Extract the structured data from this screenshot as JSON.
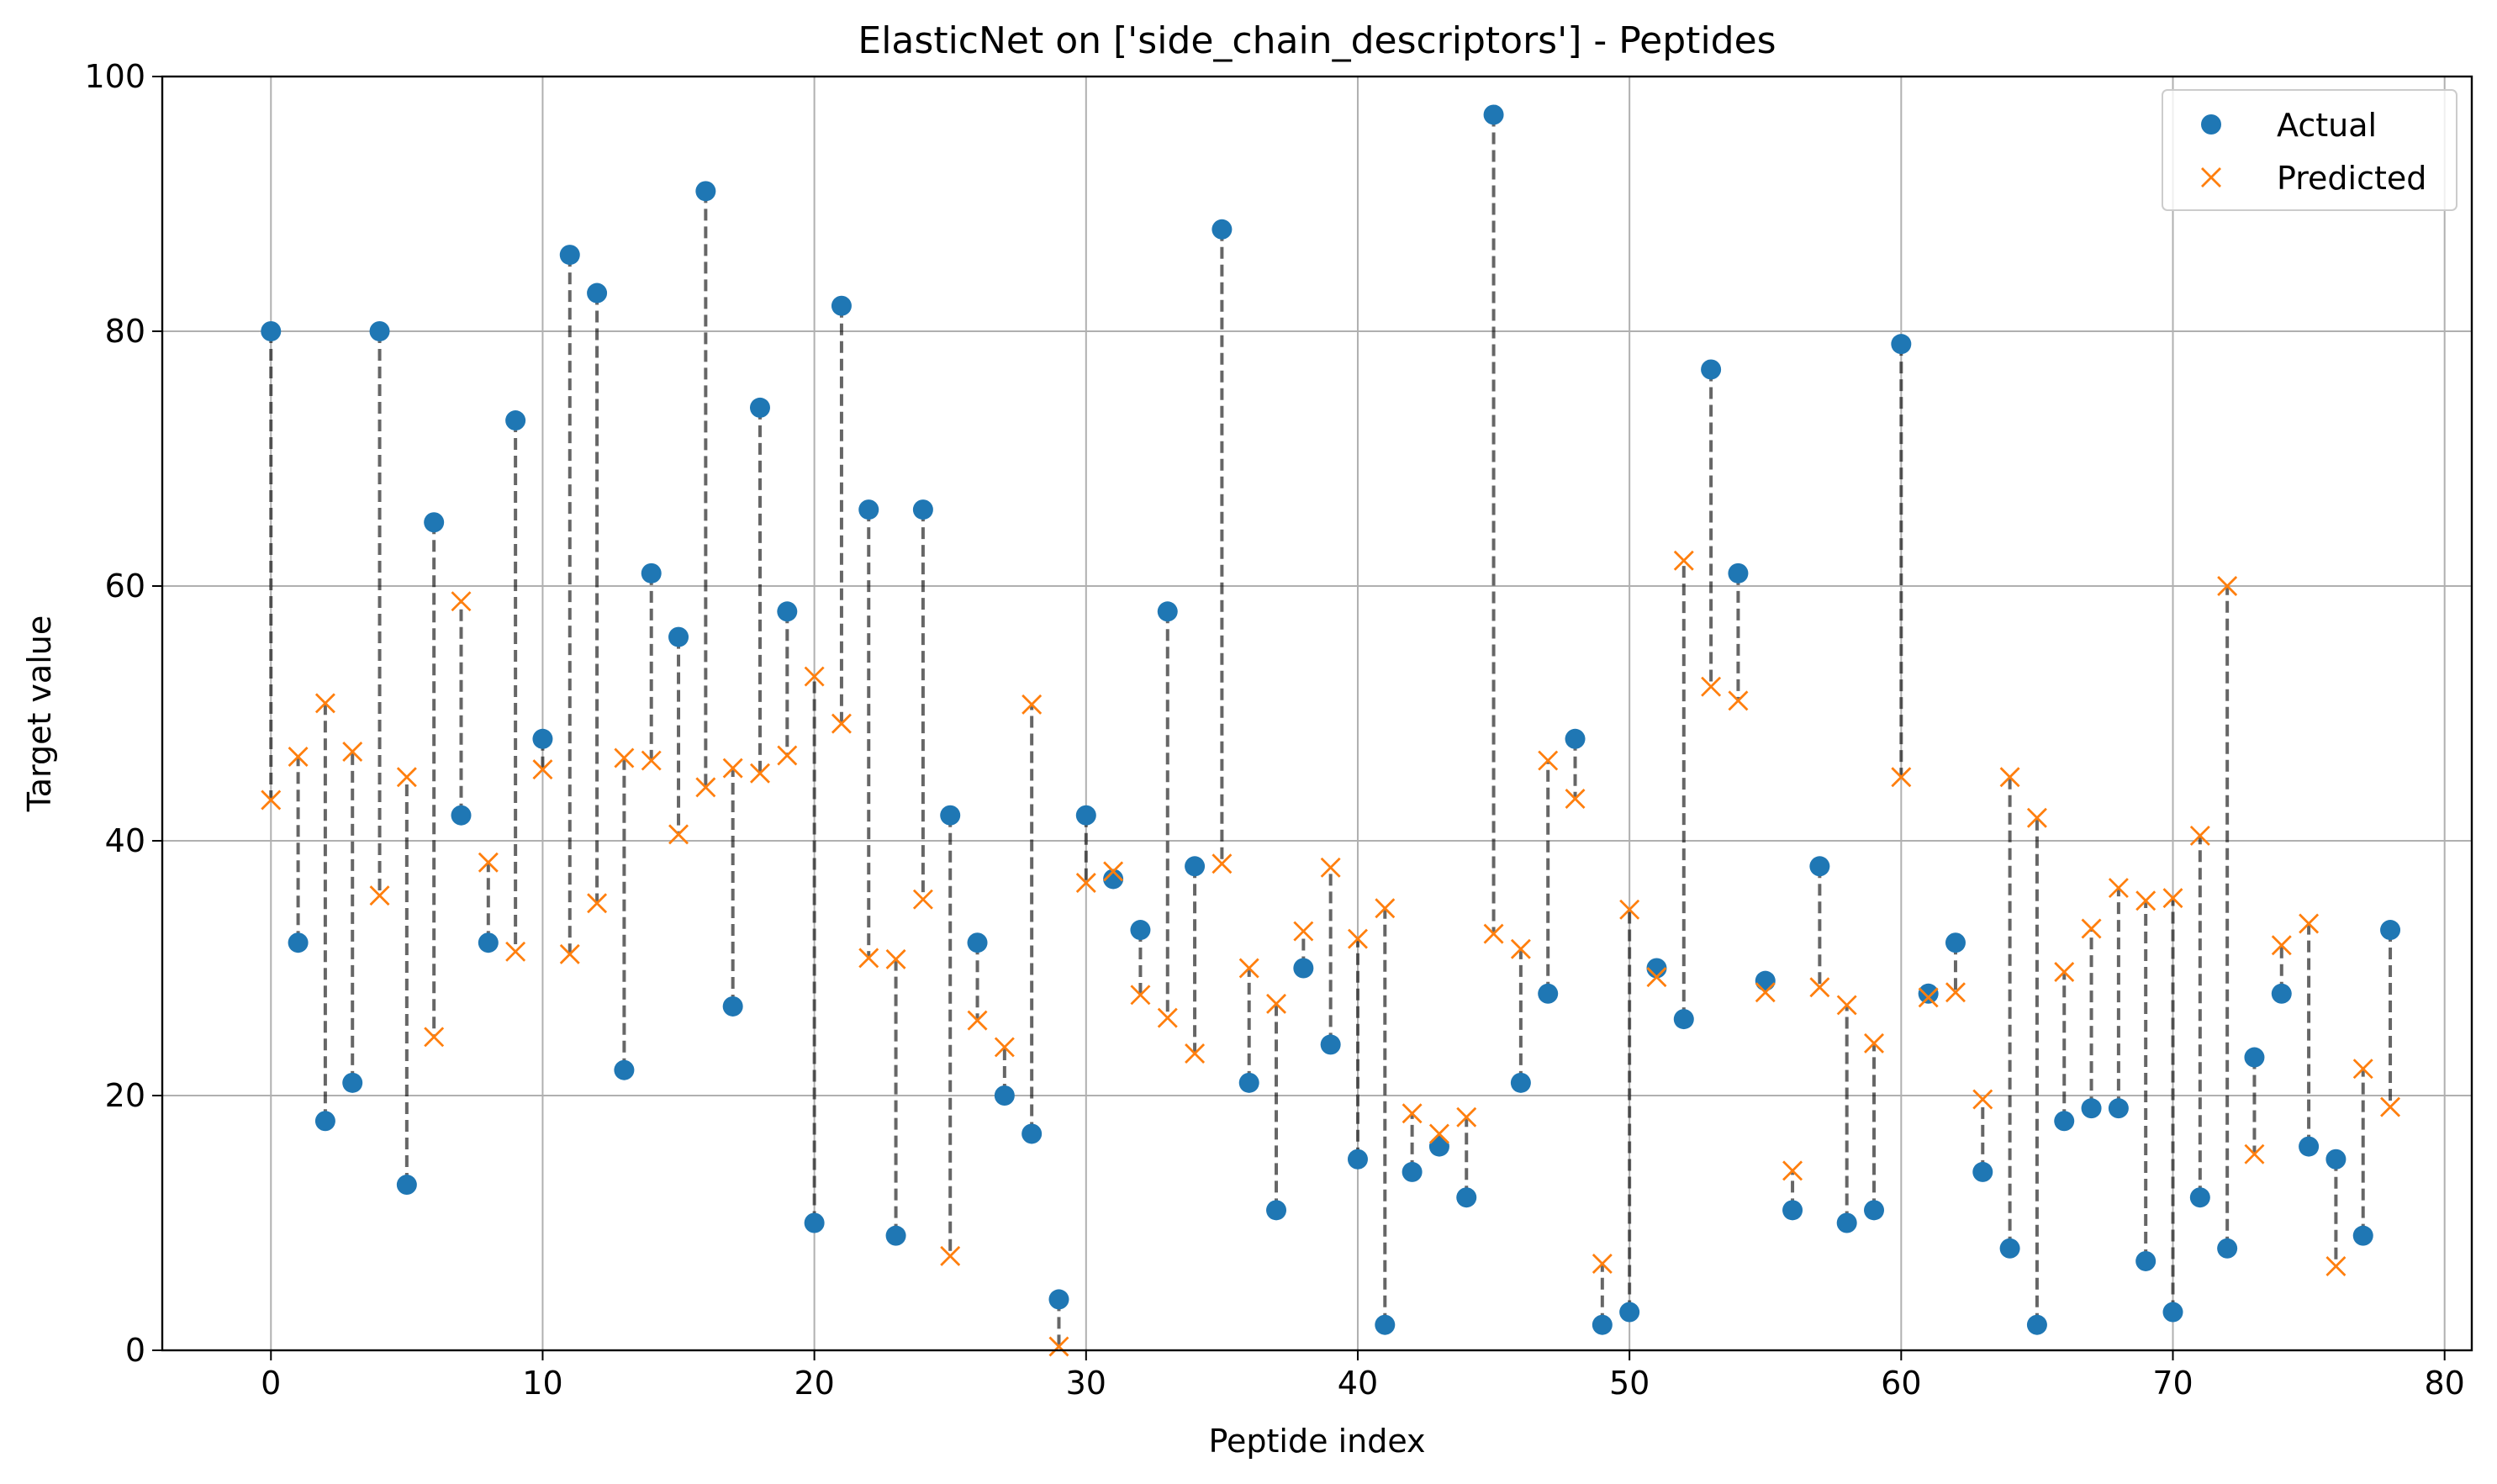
{
  "chart_data": {
    "type": "scatter",
    "title": "ElasticNet on ['side_chain_descriptors'] - Peptides",
    "xlabel": "Peptide index",
    "ylabel": "Target value",
    "xlim": [
      -4,
      81
    ],
    "ylim": [
      0,
      100
    ],
    "xticks": [
      0,
      10,
      20,
      30,
      40,
      50,
      60,
      70,
      80
    ],
    "yticks": [
      0,
      20,
      40,
      60,
      80,
      100
    ],
    "grid": true,
    "legend_position": "top-right",
    "connector_style": "dashed",
    "x": [
      0,
      1,
      2,
      3,
      4,
      5,
      6,
      7,
      8,
      9,
      10,
      11,
      12,
      13,
      14,
      15,
      16,
      17,
      18,
      19,
      20,
      21,
      22,
      23,
      24,
      25,
      26,
      27,
      28,
      29,
      30,
      31,
      32,
      33,
      34,
      35,
      36,
      37,
      38,
      39,
      40,
      41,
      42,
      43,
      44,
      45,
      46,
      47,
      48,
      49,
      50,
      51,
      52,
      53,
      54,
      55,
      56,
      57,
      58,
      59,
      60,
      61,
      62,
      63,
      64,
      65,
      66,
      67,
      68,
      69,
      70,
      71,
      72,
      73,
      74,
      75,
      76,
      77,
      78
    ],
    "series": [
      {
        "name": "Actual",
        "marker": "circle",
        "color": "#1f77b4",
        "values": [
          80,
          32,
          18,
          21,
          80,
          13,
          65,
          42,
          32,
          73,
          48,
          86,
          83,
          22,
          61,
          56,
          91,
          27,
          74,
          58,
          10,
          82,
          66,
          9,
          66,
          42,
          32,
          20,
          17,
          4,
          42,
          37,
          33,
          58,
          38,
          88,
          21,
          11,
          30,
          24,
          15,
          2,
          14,
          16,
          12,
          97,
          21,
          28,
          48,
          2,
          3,
          30,
          26,
          77,
          61,
          29,
          11,
          38,
          10,
          11,
          79,
          28,
          32,
          14,
          8,
          2,
          18,
          19,
          19,
          7,
          3,
          12,
          8,
          23,
          28,
          16,
          15,
          9,
          33
        ]
      },
      {
        "name": "Predicted",
        "marker": "x",
        "color": "#ff7f0e",
        "values": [
          43.2,
          46.6,
          50.8,
          47,
          35.7,
          45,
          24.6,
          58.8,
          38.3,
          31.3,
          45.6,
          31.1,
          35.1,
          46.5,
          46.3,
          40.5,
          44.2,
          45.7,
          45.3,
          46.7,
          52.9,
          49.2,
          30.8,
          30.7,
          35.4,
          7.4,
          25.9,
          23.8,
          50.7,
          0.3,
          36.7,
          37.6,
          27.9,
          26.1,
          23.3,
          38.2,
          30,
          27.2,
          32.9,
          37.9,
          32.3,
          34.7,
          18.6,
          17,
          18.3,
          32.7,
          31.5,
          46.3,
          43.3,
          6.8,
          34.6,
          29.3,
          62,
          52.1,
          51,
          28.1,
          14.1,
          28.5,
          27.1,
          24.1,
          45,
          27.7,
          28.1,
          19.7,
          45,
          41.8,
          29.7,
          33.1,
          36.3,
          35.3,
          35.5,
          40.4,
          60,
          15.4,
          31.8,
          33.5,
          6.6,
          22.1,
          19.1
        ]
      }
    ]
  }
}
